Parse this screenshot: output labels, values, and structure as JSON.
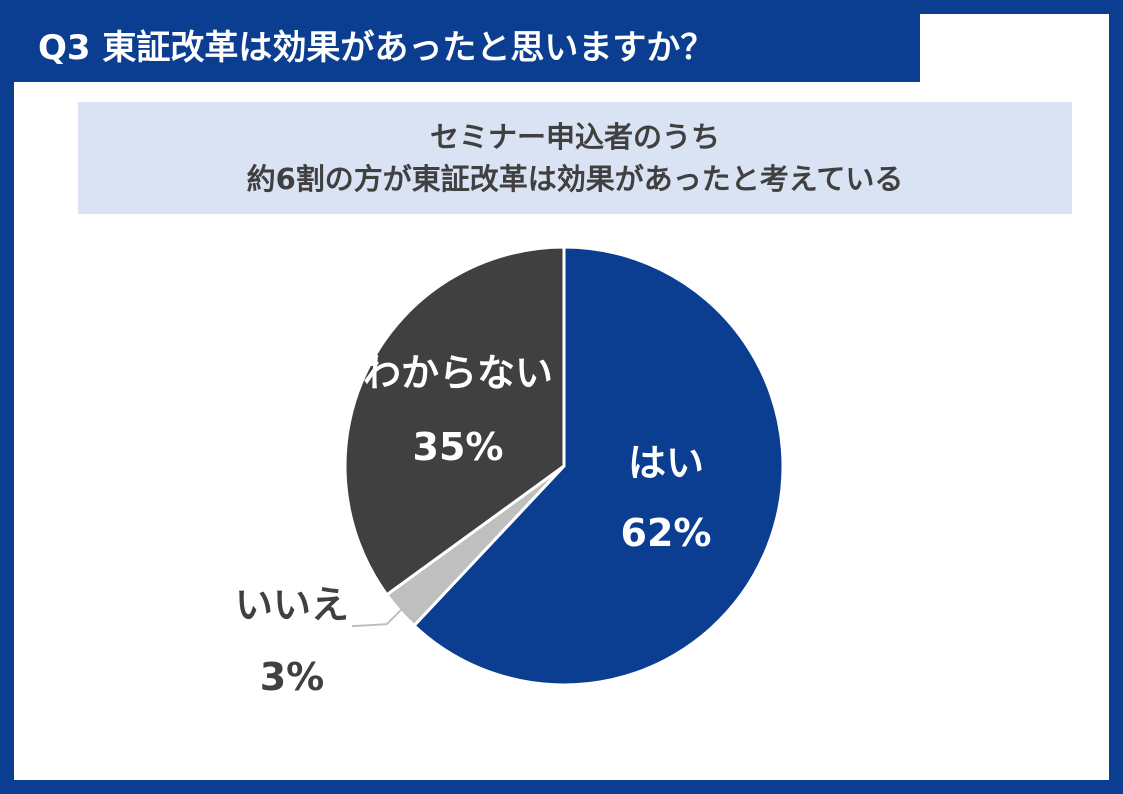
{
  "header": {
    "question": "Q3 東証改革は効果があったと思いますか？"
  },
  "summary": {
    "line1": "セミナー申込者のうち",
    "line2": "約6割の方が東証改革は効果があったと考えている"
  },
  "chart_data": {
    "type": "pie",
    "categories": [
      "はい",
      "いいえ",
      "わからない"
    ],
    "values": [
      62,
      3,
      35
    ],
    "labels": [
      "62%",
      "3%",
      "35%"
    ],
    "colors": [
      "#0b3d91",
      "#bfbfbf",
      "#404040"
    ],
    "start": "12 o'clock, clockwise"
  }
}
